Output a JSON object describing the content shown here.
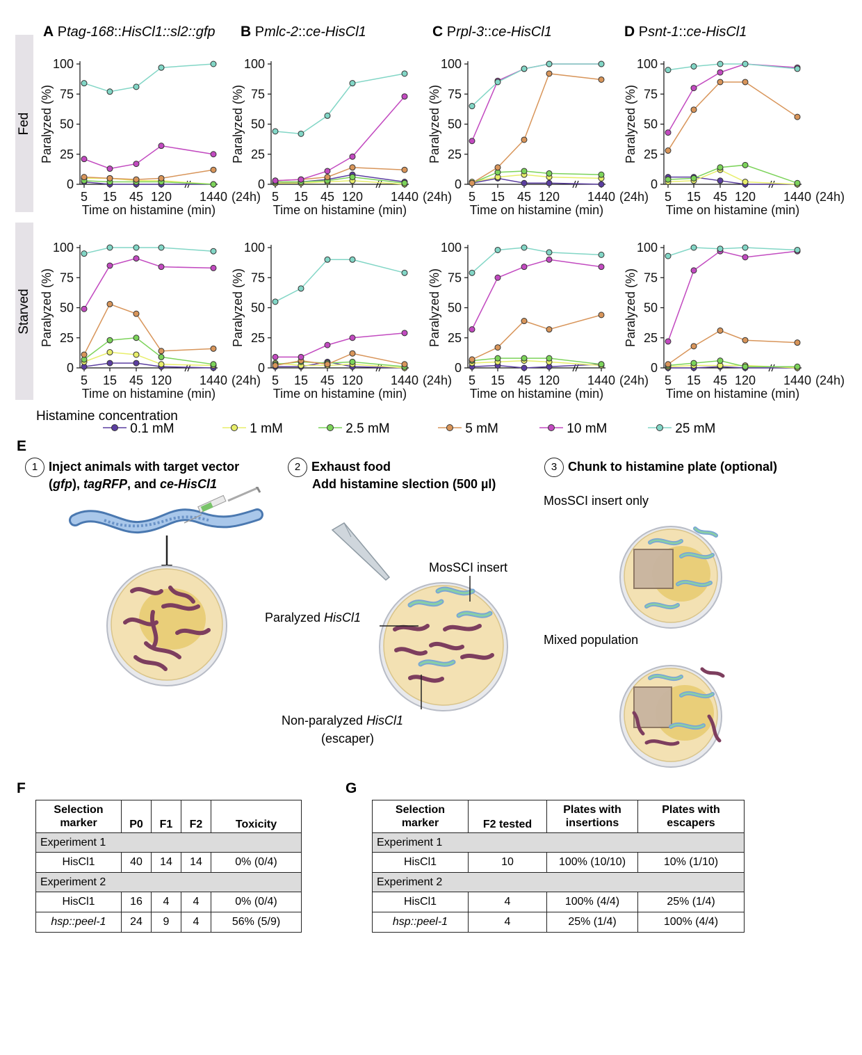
{
  "row_labels": [
    "Fed",
    "Starved"
  ],
  "panels": [
    {
      "letter": "A",
      "title_pre": "P",
      "title_italic": "tag-168",
      "title_mid": "::",
      "title_italic2": "HisCl1::sl2::gfp"
    },
    {
      "letter": "B",
      "title_pre": "P",
      "title_italic": "mlc-2",
      "title_mid": "::",
      "title_italic2": "ce-HisCl1"
    },
    {
      "letter": "C",
      "title_pre": "P",
      "title_italic": "rpl-3",
      "title_mid": "::",
      "title_italic2": "ce-HisCl1"
    },
    {
      "letter": "D",
      "title_pre": "P",
      "title_italic": "snt-1",
      "title_mid": "::",
      "title_italic2": "ce-HisCl1"
    }
  ],
  "axis": {
    "ylabel": "Paralyzed (%)",
    "xlabel": "Time on histamine (min)",
    "xticks": [
      "5",
      "15",
      "45",
      "120",
      "1440"
    ],
    "xtick_suffix": "(24h)",
    "yticks": [
      "0",
      "25",
      "50",
      "75",
      "100"
    ]
  },
  "legend": {
    "title": "Histamine concentration",
    "items": [
      {
        "label": "0.1 mM",
        "color": "#5b3ea0"
      },
      {
        "label": "1 mM",
        "color": "#e8ee6a"
      },
      {
        "label": "2.5 mM",
        "color": "#7cd35a"
      },
      {
        "label": "5 mM",
        "color": "#d8955a"
      },
      {
        "label": "10 mM",
        "color": "#c24ac0"
      },
      {
        "label": "25 mM",
        "color": "#82d6c6"
      }
    ]
  },
  "chart_data": [
    {
      "panel": "A",
      "row": "Fed",
      "type": "line",
      "x": [
        "5",
        "15",
        "45",
        "120",
        "1440"
      ],
      "ylim": [
        0,
        100
      ],
      "series": [
        {
          "name": "0.1 mM",
          "values": [
            2,
            0,
            0,
            0,
            0
          ]
        },
        {
          "name": "1 mM",
          "values": [
            5,
            5,
            3,
            3,
            0
          ]
        },
        {
          "name": "2.5 mM",
          "values": [
            3,
            2,
            2,
            2,
            0
          ]
        },
        {
          "name": "5 mM",
          "values": [
            6,
            5,
            4,
            5,
            12
          ]
        },
        {
          "name": "10 mM",
          "values": [
            21,
            13,
            17,
            32,
            25
          ]
        },
        {
          "name": "25 mM",
          "values": [
            84,
            77,
            81,
            97,
            100
          ]
        }
      ]
    },
    {
      "panel": "B",
      "row": "Fed",
      "type": "line",
      "x": [
        "5",
        "15",
        "45",
        "120",
        "1440"
      ],
      "ylim": [
        0,
        100
      ],
      "series": [
        {
          "name": "0.1 mM",
          "values": [
            1,
            2,
            4,
            8,
            2
          ]
        },
        {
          "name": "1 mM",
          "values": [
            1,
            1,
            2,
            3,
            0
          ]
        },
        {
          "name": "2.5 mM",
          "values": [
            2,
            2,
            3,
            6,
            1
          ]
        },
        {
          "name": "5 mM",
          "values": [
            3,
            4,
            6,
            14,
            12
          ]
        },
        {
          "name": "10 mM",
          "values": [
            3,
            4,
            11,
            23,
            73
          ]
        },
        {
          "name": "25 mM",
          "values": [
            44,
            42,
            57,
            84,
            92
          ]
        }
      ]
    },
    {
      "panel": "C",
      "row": "Fed",
      "type": "line",
      "x": [
        "5",
        "15",
        "45",
        "120",
        "1440"
      ],
      "ylim": [
        0,
        100
      ],
      "series": [
        {
          "name": "0.1 mM",
          "values": [
            1,
            5,
            1,
            1,
            0
          ]
        },
        {
          "name": "1 mM",
          "values": [
            2,
            6,
            8,
            6,
            5
          ]
        },
        {
          "name": "2.5 mM",
          "values": [
            1,
            10,
            11,
            9,
            8
          ]
        },
        {
          "name": "5 mM",
          "values": [
            1,
            14,
            37,
            92,
            87
          ]
        },
        {
          "name": "10 mM",
          "values": [
            36,
            86,
            96,
            100,
            100
          ]
        },
        {
          "name": "25 mM",
          "values": [
            65,
            85,
            96,
            100,
            100
          ]
        }
      ]
    },
    {
      "panel": "D",
      "row": "Fed",
      "type": "line",
      "x": [
        "5",
        "15",
        "45",
        "120",
        "1440"
      ],
      "ylim": [
        0,
        100
      ],
      "series": [
        {
          "name": "0.1 mM",
          "values": [
            6,
            6,
            3,
            0,
            0
          ]
        },
        {
          "name": "1 mM",
          "values": [
            2,
            3,
            12,
            2,
            0
          ]
        },
        {
          "name": "2.5 mM",
          "values": [
            4,
            5,
            14,
            16,
            1
          ]
        },
        {
          "name": "5 mM",
          "values": [
            28,
            62,
            85,
            85,
            56
          ]
        },
        {
          "name": "10 mM",
          "values": [
            43,
            80,
            93,
            100,
            97
          ]
        },
        {
          "name": "25 mM",
          "values": [
            95,
            98,
            100,
            100,
            96
          ]
        }
      ]
    },
    {
      "panel": "A",
      "row": "Starved",
      "type": "line",
      "x": [
        "5",
        "15",
        "45",
        "120",
        "1440"
      ],
      "ylim": [
        0,
        100
      ],
      "series": [
        {
          "name": "0.1 mM",
          "values": [
            1,
            4,
            4,
            1,
            0
          ]
        },
        {
          "name": "1 mM",
          "values": [
            5,
            13,
            11,
            3,
            2
          ]
        },
        {
          "name": "2.5 mM",
          "values": [
            7,
            23,
            25,
            9,
            3
          ]
        },
        {
          "name": "5 mM",
          "values": [
            11,
            53,
            45,
            14,
            16
          ]
        },
        {
          "name": "10 mM",
          "values": [
            49,
            85,
            91,
            84,
            83
          ]
        },
        {
          "name": "25 mM",
          "values": [
            95,
            100,
            100,
            100,
            97
          ]
        }
      ]
    },
    {
      "panel": "B",
      "row": "Starved",
      "type": "line",
      "x": [
        "5",
        "15",
        "45",
        "120",
        "1440"
      ],
      "ylim": [
        0,
        100
      ],
      "series": [
        {
          "name": "0.1 mM",
          "values": [
            1,
            1,
            5,
            1,
            0
          ]
        },
        {
          "name": "1 mM",
          "values": [
            4,
            2,
            2,
            3,
            0
          ]
        },
        {
          "name": "2.5 mM",
          "values": [
            3,
            5,
            4,
            5,
            1
          ]
        },
        {
          "name": "5 mM",
          "values": [
            2,
            6,
            3,
            12,
            3
          ]
        },
        {
          "name": "10 mM",
          "values": [
            9,
            9,
            19,
            25,
            29
          ]
        },
        {
          "name": "25 mM",
          "values": [
            55,
            66,
            90,
            90,
            79
          ]
        }
      ]
    },
    {
      "panel": "C",
      "row": "Starved",
      "type": "line",
      "x": [
        "5",
        "15",
        "45",
        "120",
        "1440"
      ],
      "ylim": [
        0,
        100
      ],
      "series": [
        {
          "name": "0.1 mM",
          "values": [
            1,
            2,
            0,
            1,
            3
          ]
        },
        {
          "name": "1 mM",
          "values": [
            4,
            5,
            6,
            5,
            2
          ]
        },
        {
          "name": "2.5 mM",
          "values": [
            6,
            8,
            8,
            8,
            3
          ]
        },
        {
          "name": "5 mM",
          "values": [
            7,
            17,
            39,
            32,
            44
          ]
        },
        {
          "name": "10 mM",
          "values": [
            32,
            75,
            84,
            90,
            84
          ]
        },
        {
          "name": "25 mM",
          "values": [
            79,
            98,
            100,
            96,
            94
          ]
        }
      ]
    },
    {
      "panel": "D",
      "row": "Starved",
      "type": "line",
      "x": [
        "5",
        "15",
        "45",
        "120",
        "1440"
      ],
      "ylim": [
        0,
        100
      ],
      "series": [
        {
          "name": "0.1 mM",
          "values": [
            0,
            0,
            1,
            0,
            0
          ]
        },
        {
          "name": "1 mM",
          "values": [
            1,
            2,
            2,
            2,
            0
          ]
        },
        {
          "name": "2.5 mM",
          "values": [
            2,
            4,
            6,
            1,
            1
          ]
        },
        {
          "name": "5 mM",
          "values": [
            3,
            18,
            31,
            23,
            21
          ]
        },
        {
          "name": "10 mM",
          "values": [
            22,
            81,
            97,
            92,
            97
          ]
        },
        {
          "name": "25 mM",
          "values": [
            93,
            100,
            99,
            100,
            98
          ]
        }
      ]
    }
  ],
  "section_e": {
    "letter": "E",
    "step1_num": "1",
    "step1_line1": "Inject animals with target vector",
    "step1_line2_a": "(",
    "step1_line2_gfp": "gfp",
    "step1_line2_b": "), ",
    "step1_line2_rfp": "tagRFP",
    "step1_line2_c": ", and ",
    "step1_line2_his": "ce-HisCl1",
    "step2_num": "2",
    "step2_line1": "Exhaust food",
    "step2_line2": "Add histamine slection (500 µl)",
    "step3_num": "3",
    "step3_line1": "Chunk to histamine plate (optional)",
    "label_mossci_only": "MosSCI insert only",
    "label_mixed": "Mixed population",
    "label_mossci_insert": "MosSCI insert",
    "label_paralyzed_pre": "Paralyzed ",
    "label_paralyzed_it": "HisCl1",
    "label_nonpar_pre": "Non-paralyzed ",
    "label_nonpar_it": "HisCl1",
    "label_escaper": "(escaper)"
  },
  "table_f": {
    "letter": "F",
    "headers": [
      "Selection marker",
      "P0",
      "F1",
      "F2",
      "Toxicity"
    ],
    "exp1_label": "Experiment 1",
    "exp2_label": "Experiment 2",
    "rows_exp1": [
      [
        "HisCl1",
        "40",
        "14",
        "14",
        "0% (0/4)"
      ]
    ],
    "rows_exp2": [
      [
        "HisCl1",
        "16",
        "4",
        "4",
        "0% (0/4)"
      ],
      [
        "hsp::peel-1",
        "24",
        "9",
        "4",
        "56% (5/9)"
      ]
    ]
  },
  "table_g": {
    "letter": "G",
    "headers": [
      "Selection marker",
      "F2 tested",
      "Plates with insertions",
      "Plates with escapers"
    ],
    "exp1_label": "Experiment 1",
    "exp2_label": "Experiment 2",
    "rows_exp1": [
      [
        "HisCl1",
        "10",
        "100% (10/10)",
        "10% (1/10)"
      ]
    ],
    "rows_exp2": [
      [
        "HisCl1",
        "4",
        "100% (4/4)",
        "25% (1/4)"
      ],
      [
        "hsp::peel-1",
        "4",
        "25% (1/4)",
        "100% (4/4)"
      ]
    ]
  }
}
